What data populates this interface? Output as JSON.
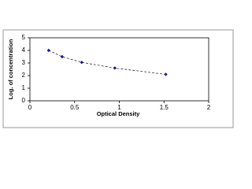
{
  "chart_data": {
    "type": "scatter",
    "x_label": "Optical Density",
    "y_label": "Log. of concentration",
    "x": [
      0.21,
      0.36,
      0.58,
      0.95,
      1.52
    ],
    "values": [
      4.0,
      3.5,
      3.05,
      2.6,
      2.1
    ],
    "color": "#1a1a8c",
    "line_style": "dashed",
    "xlim": [
      0,
      2
    ],
    "xticks": [
      0,
      0.5,
      1,
      1.5,
      2
    ],
    "ylim": [
      0,
      5
    ],
    "yticks": [
      0,
      1,
      2,
      3,
      4,
      5
    ]
  }
}
